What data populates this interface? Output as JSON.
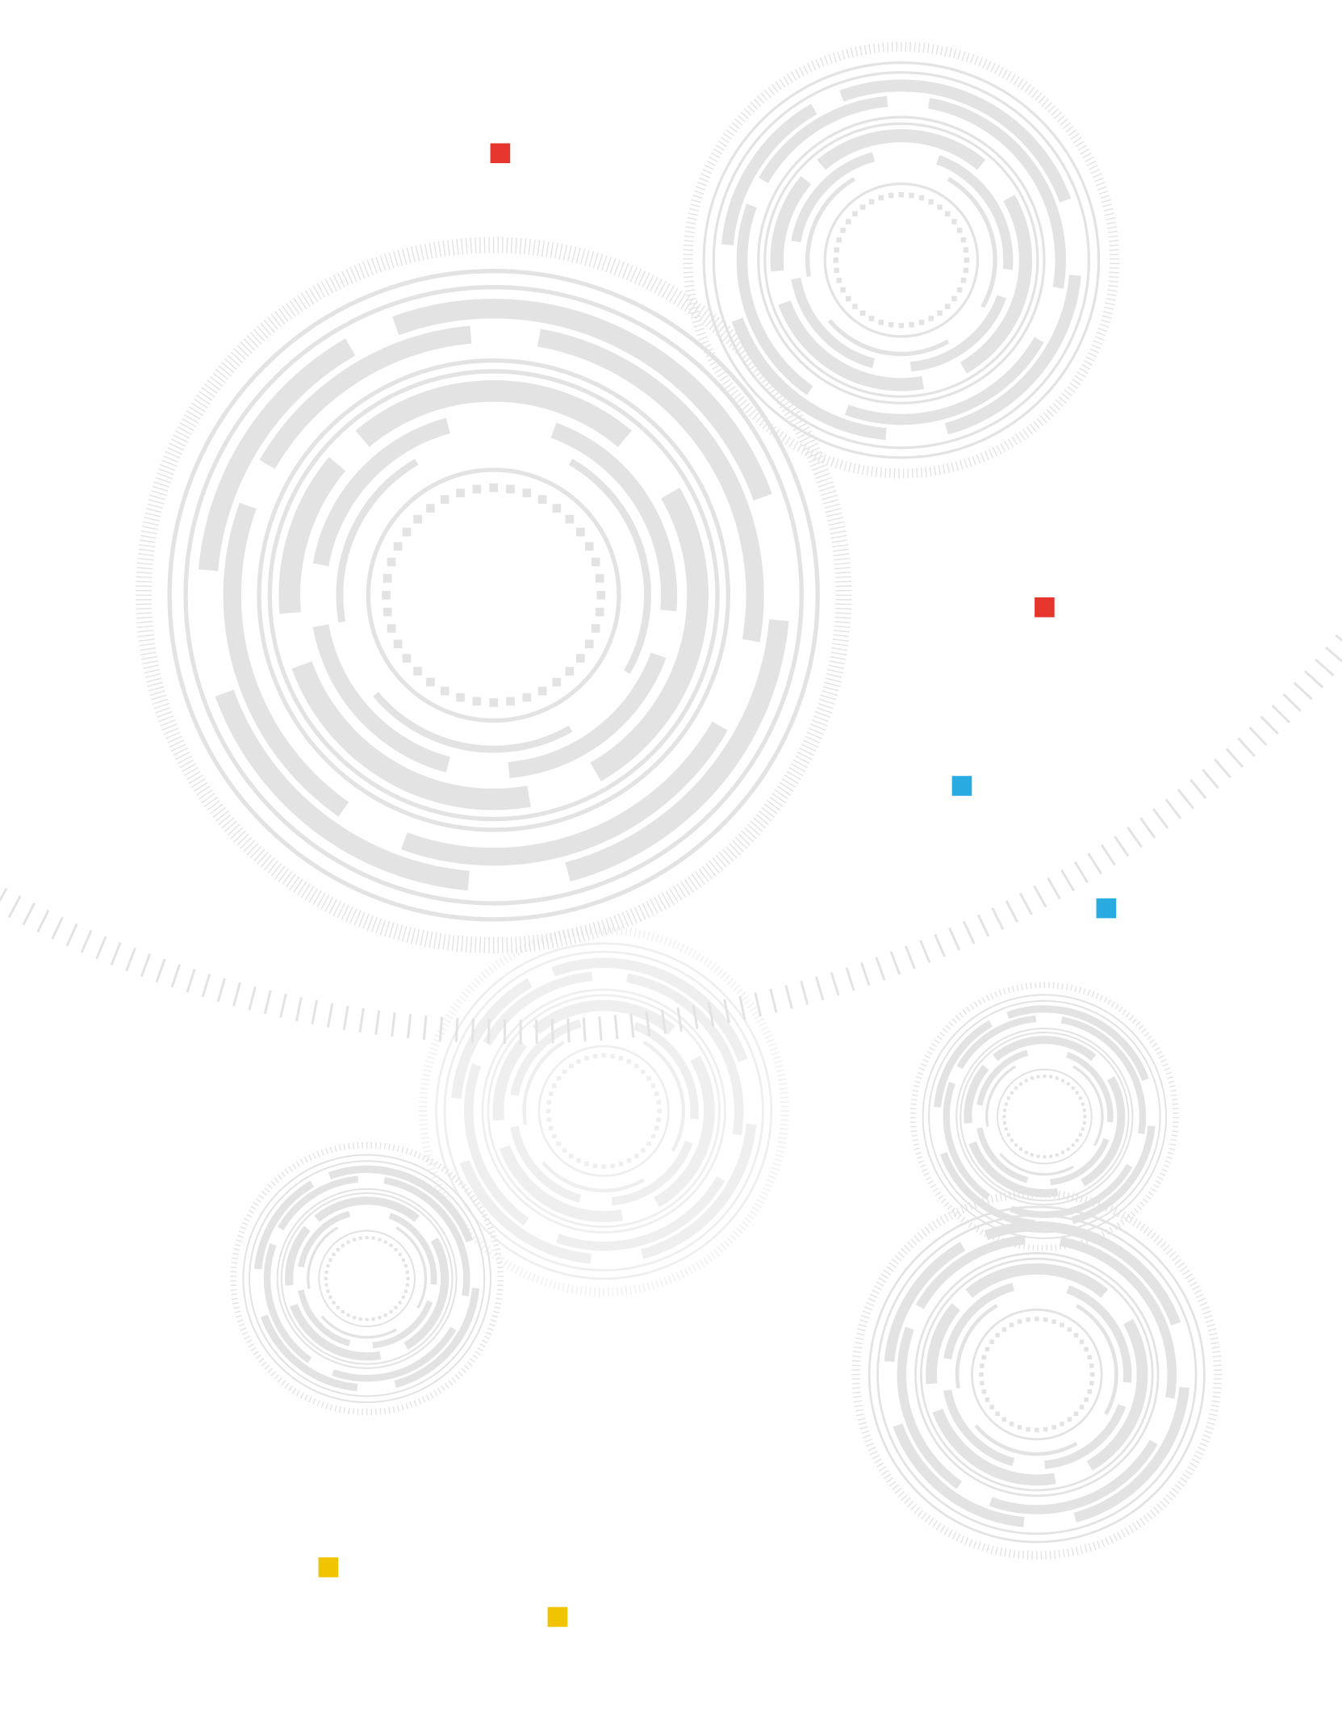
{
  "background_color": "#ffffff",
  "ring_color": "#e3e3e3",
  "ring_color_faint": "#eeeeee",
  "icons": {
    "large_arc": "tick-arc-icon",
    "gear": "concentric-gear-icon",
    "square": "square-marker-icon"
  },
  "accent_colors": {
    "red": "#e5352c",
    "blue": "#29abe2",
    "yellow": "#f0c400"
  },
  "markers": [
    {
      "name": "red-square-marker-1",
      "color": "red"
    },
    {
      "name": "red-square-marker-2",
      "color": "red"
    },
    {
      "name": "blue-square-marker-1",
      "color": "blue"
    },
    {
      "name": "blue-square-marker-2",
      "color": "blue"
    },
    {
      "name": "yellow-square-marker-1",
      "color": "yellow"
    },
    {
      "name": "yellow-square-marker-2",
      "color": "yellow"
    }
  ],
  "gears": [
    {
      "name": "gear-large-left",
      "style": "solid"
    },
    {
      "name": "gear-top-right",
      "style": "solid"
    },
    {
      "name": "gear-center-faded",
      "style": "faded"
    },
    {
      "name": "gear-bottom-left",
      "style": "solid"
    },
    {
      "name": "gear-right-small",
      "style": "solid"
    },
    {
      "name": "gear-bottom-right",
      "style": "solid"
    }
  ]
}
